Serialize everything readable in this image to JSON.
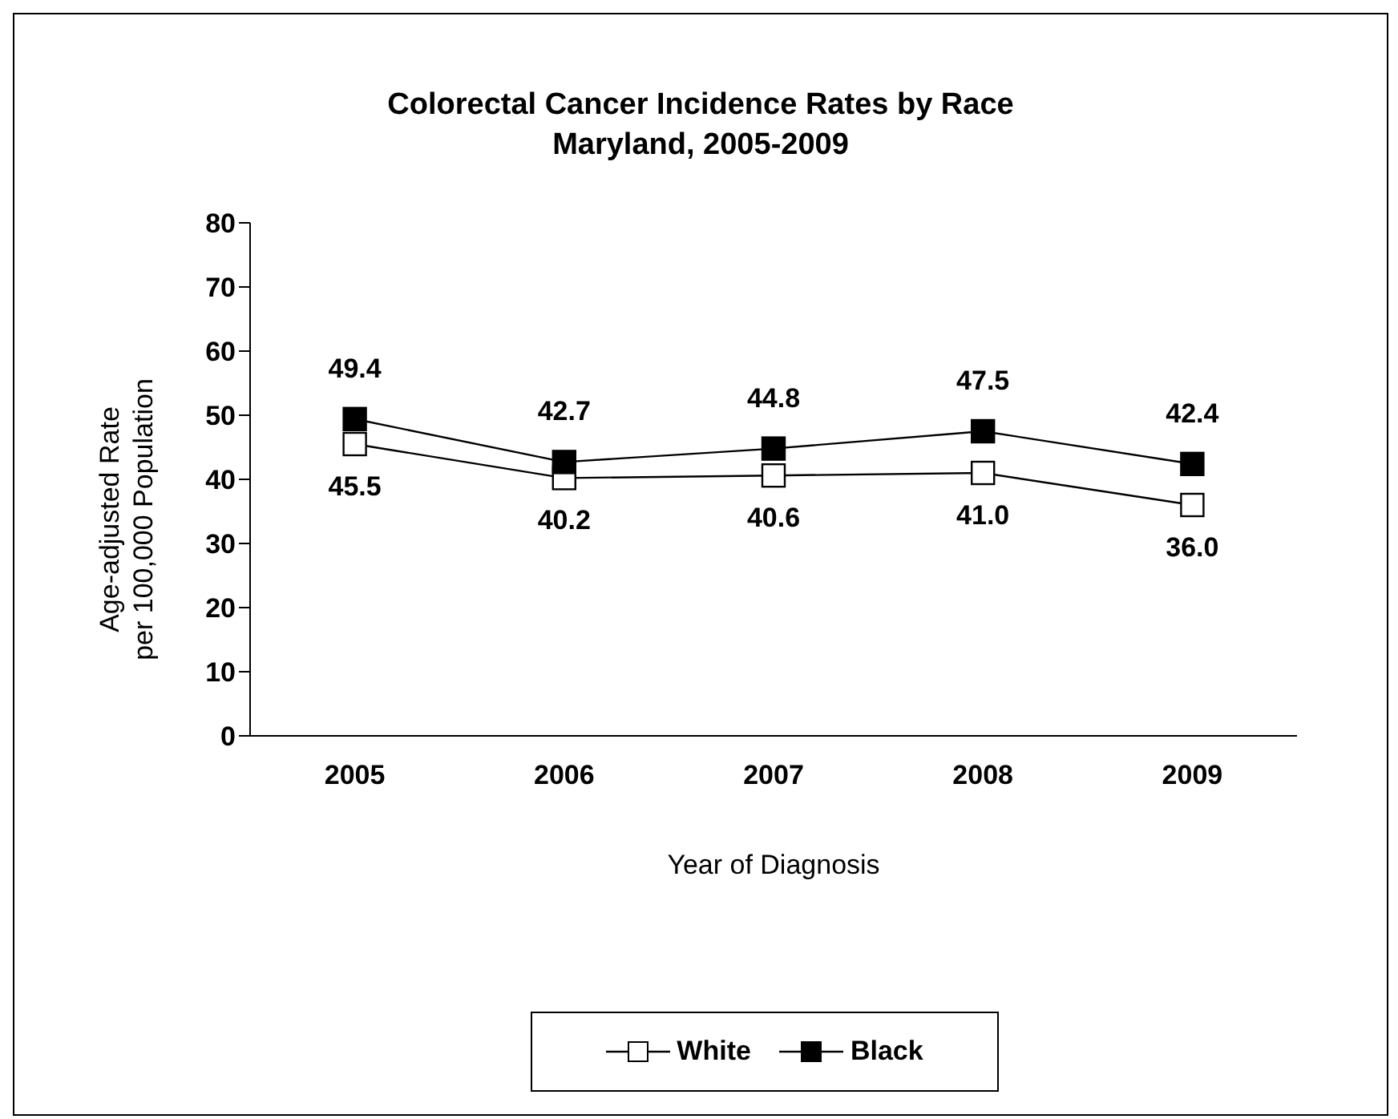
{
  "chart_data": {
    "type": "line",
    "title": "Colorectal Cancer Incidence Rates by Race\nMaryland, 2005-2009",
    "xlabel": "Year of Diagnosis",
    "ylabel": "Age-adjusted Rate\nper 100,000 Population",
    "categories": [
      "2005",
      "2006",
      "2007",
      "2008",
      "2009"
    ],
    "series": [
      {
        "name": "White",
        "color": "#000000",
        "values": [
          45.5,
          40.2,
          40.6,
          41.0,
          36.0
        ],
        "value_labels": [
          "45.5",
          "40.2",
          "40.6",
          "41.0",
          "36.0"
        ]
      },
      {
        "name": "Black",
        "color": "#000000",
        "values": [
          49.4,
          42.7,
          44.8,
          47.5,
          42.4
        ],
        "value_labels": [
          "49.4",
          "42.7",
          "44.8",
          "47.5",
          "42.4"
        ]
      }
    ],
    "ylim": [
      0,
      80
    ],
    "yticks": [
      0,
      10,
      20,
      30,
      40,
      50,
      60,
      70,
      80
    ],
    "grid": false,
    "legend": "bottom",
    "marker": "square",
    "line_style": "solid"
  }
}
